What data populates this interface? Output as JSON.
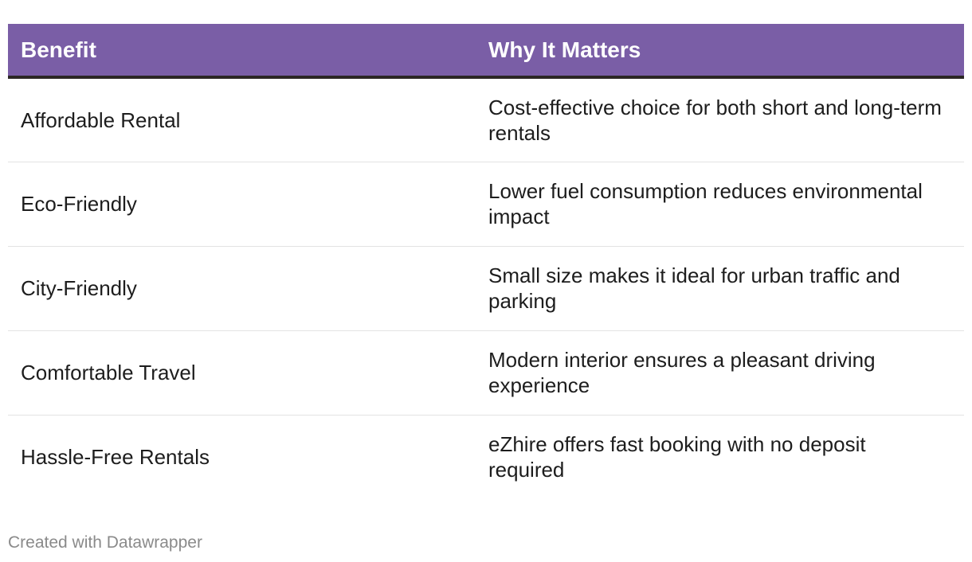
{
  "chart_data": {
    "type": "table",
    "columns": [
      "Benefit",
      "Why It Matters"
    ],
    "rows": [
      [
        "Affordable Rental",
        "Cost-effective choice for both short and long-term rentals"
      ],
      [
        "Eco-Friendly",
        "Lower fuel consumption reduces environmental impact"
      ],
      [
        "City-Friendly",
        "Small size makes it ideal for urban traffic and parking"
      ],
      [
        "Comfortable Travel",
        "Modern interior ensures a pleasant driving experience"
      ],
      [
        "Hassle-Free Rentals",
        "eZhire offers fast booking with no deposit required"
      ]
    ]
  },
  "footer": {
    "credit": "Created with Datawrapper"
  },
  "colors": {
    "header_bg": "#7a5ea6",
    "header_text": "#ffffff",
    "header_rule": "#2b2624",
    "row_divider": "#e3e3e3",
    "footer_text": "#8a8a8a"
  }
}
